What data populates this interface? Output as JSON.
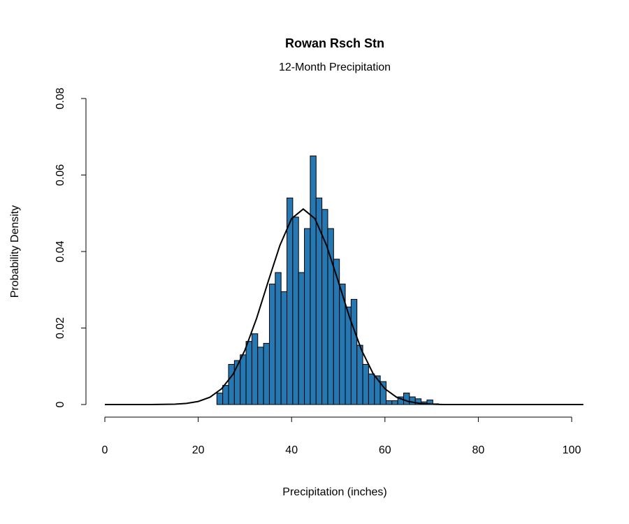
{
  "chart_data": {
    "type": "histogram",
    "title": "Rowan Rsch Stn",
    "subtitle": "12-Month Precipitation",
    "x_label": "Precipitation (inches)",
    "y_label": "Probability Density",
    "bins": [
      24,
      25.25,
      26.5,
      27.75,
      29,
      30.25,
      31.5,
      32.75,
      34,
      35.25,
      36.5,
      37.75,
      39,
      40.25,
      41.5,
      42.75,
      44,
      45.25,
      46.5,
      47.75,
      49,
      50.25,
      51.5,
      52.75,
      54,
      55.25,
      56.5,
      57.75,
      59,
      60.25,
      61.5,
      62.75,
      64,
      65.25,
      66.5,
      67.75,
      69,
      70.25,
      71.5
    ],
    "values": [
      0.003,
      0.005,
      0.0105,
      0.0115,
      0.013,
      0.0165,
      0.0185,
      0.015,
      0.016,
      0.0315,
      0.0345,
      0.0295,
      0.054,
      0.049,
      0.0345,
      0.046,
      0.065,
      0.054,
      0.051,
      0.046,
      0.038,
      0.0315,
      0.0255,
      0.0275,
      0.0155,
      0.0105,
      0.008,
      0.0075,
      0.006,
      0.001,
      0.001,
      0.002,
      0.003,
      0.002,
      0.0015,
      0.0007,
      0.0012,
      0.0002
    ],
    "color": "#2678b2",
    "density_curve": {
      "color": "#000000",
      "x": [
        0,
        10,
        15,
        17.5,
        20,
        22.5,
        25,
        27.5,
        30,
        32.5,
        35,
        37.5,
        40,
        42.5,
        45,
        47.5,
        50,
        52.5,
        55,
        57.5,
        60,
        62.5,
        65,
        67.5,
        70,
        72.5,
        75,
        85,
        102.5
      ],
      "y": [
        0,
        0,
        0.0001,
        0.0003,
        0.0008,
        0.0019,
        0.0041,
        0.008,
        0.0142,
        0.0225,
        0.0322,
        0.0416,
        0.0486,
        0.0511,
        0.0486,
        0.0416,
        0.0322,
        0.0225,
        0.0142,
        0.008,
        0.0041,
        0.0019,
        0.0008,
        0.0003,
        0.0001,
        0,
        0,
        0,
        0
      ]
    },
    "xlim": [
      0,
      100
    ],
    "xticks": [
      0,
      20,
      40,
      60,
      80,
      100
    ],
    "ylim": [
      0,
      0.08
    ],
    "yticks": [
      0,
      0.02,
      0.04,
      0.06,
      0.08
    ]
  }
}
